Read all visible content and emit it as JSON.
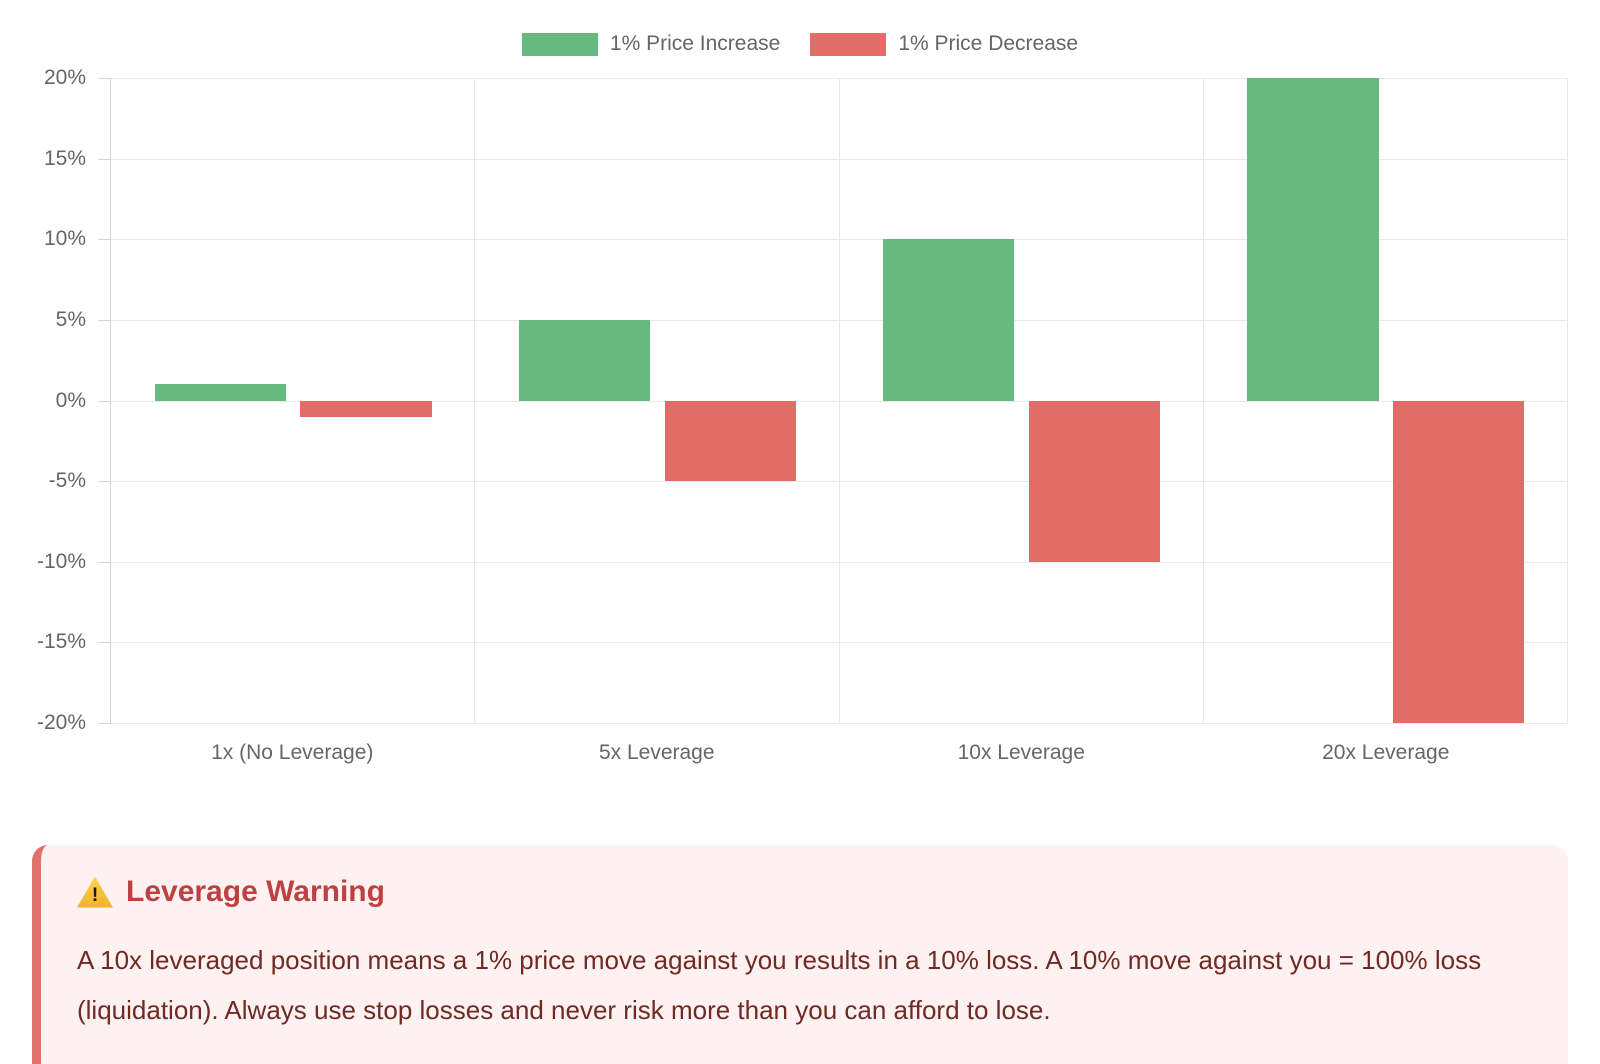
{
  "chart_data": {
    "type": "bar",
    "title": "",
    "xlabel": "",
    "ylabel": "",
    "categories": [
      "1x (No Leverage)",
      "5x Leverage",
      "10x Leverage",
      "20x Leverage"
    ],
    "series": [
      {
        "name": "1% Price Increase",
        "key": "price-increase",
        "color": "#67b97e",
        "values": [
          1,
          5,
          10,
          20
        ]
      },
      {
        "name": "1% Price Decrease",
        "key": "price-decrease",
        "color": "#e26d68",
        "values": [
          -1,
          -5,
          -10,
          -20
        ]
      }
    ],
    "ylim": [
      -20,
      20
    ],
    "ytick_values": [
      20,
      15,
      10,
      5,
      0,
      -5,
      -10,
      -15,
      -20
    ],
    "ytick_labels": [
      "20%",
      "15%",
      "10%",
      "5%",
      "0%",
      "-5%",
      "-10%",
      "-15%",
      "-20%"
    ],
    "grid": true,
    "legend_position": "top"
  },
  "warning": {
    "icon": "warning-triangle",
    "title": "Leverage Warning",
    "body": "A 10x leveraged position means a 1% price move against you results in a 10% loss. A 10% move against you = 100% loss (liquidation). Always use stop losses and never risk more than you can afford to lose.",
    "colors": {
      "background": "#fdf1f1",
      "border": "#e0716c",
      "title": "#bd4141",
      "body": "#702a24"
    }
  }
}
